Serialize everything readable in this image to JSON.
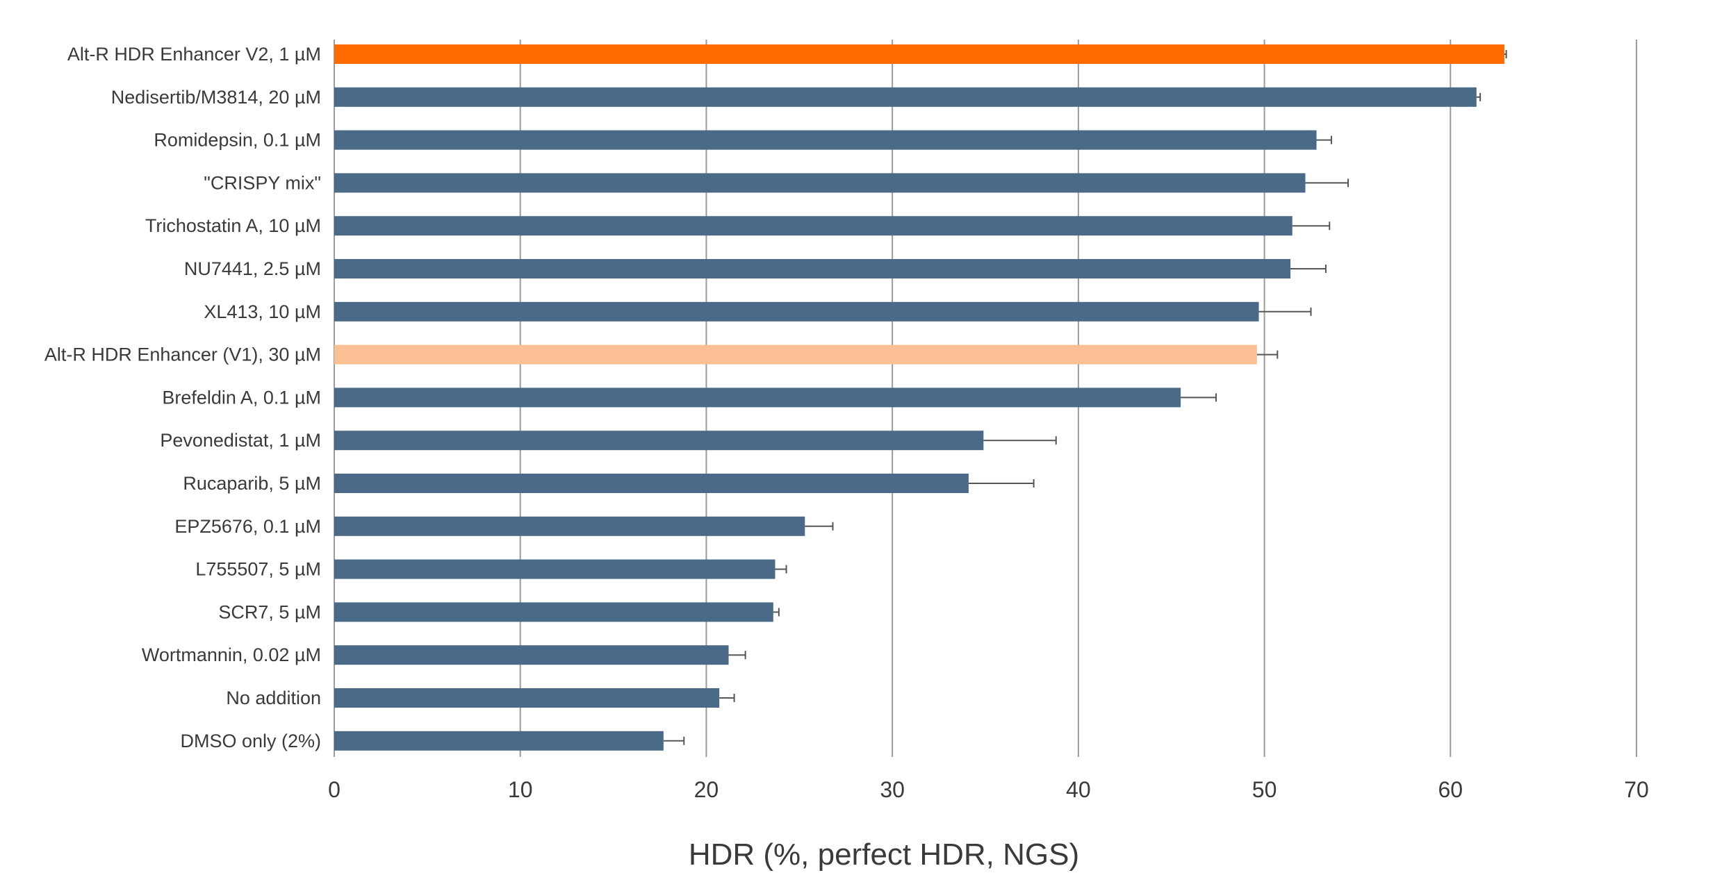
{
  "chart_data": {
    "type": "bar",
    "orientation": "horizontal",
    "title": "",
    "xlabel": "HDR (%, perfect HDR, NGS)",
    "ylabel": "",
    "xlim": [
      0,
      70
    ],
    "xticks": [
      0,
      10,
      20,
      30,
      40,
      50,
      60,
      70
    ],
    "grid": "vertical",
    "legend": "none",
    "categories": [
      "Alt-R HDR Enhancer V2, 1 µM",
      "Nedisertib/M3814, 20 µM",
      "Romidepsin, 0.1 µM",
      "\"CRISPY mix\"",
      "Trichostatin A, 10 µM",
      "NU7441, 2.5 µM",
      "XL413, 10 µM",
      "Alt-R HDR Enhancer (V1), 30 µM",
      "Brefeldin A, 0.1 µM",
      "Pevonedistat, 1 µM",
      "Rucaparib, 5 µM",
      "EPZ5676, 0.1 µM",
      "L755507, 5 µM",
      "SCR7, 5 µM",
      "Wortmannin, 0.02 µM",
      "No addition",
      "DMSO only (2%)"
    ],
    "values": [
      62.9,
      61.4,
      52.8,
      52.2,
      51.5,
      51.4,
      49.7,
      49.6,
      45.5,
      34.9,
      34.1,
      25.3,
      23.7,
      23.6,
      21.2,
      20.7,
      17.7
    ],
    "errors": [
      0.1,
      0.2,
      0.8,
      2.3,
      2.0,
      1.9,
      2.8,
      1.1,
      1.9,
      3.9,
      3.5,
      1.5,
      0.6,
      0.3,
      0.9,
      0.8,
      1.1
    ],
    "colors": {
      "default": "#4b6a88",
      "Alt-R HDR Enhancer V2, 1 µM": "#ff6a00",
      "Alt-R HDR Enhancer (V1), 30 µM": "#fbbf94"
    },
    "error_color": "#555555",
    "grid_color": "#9a9a9a",
    "text_color": "#3a3a3a"
  }
}
